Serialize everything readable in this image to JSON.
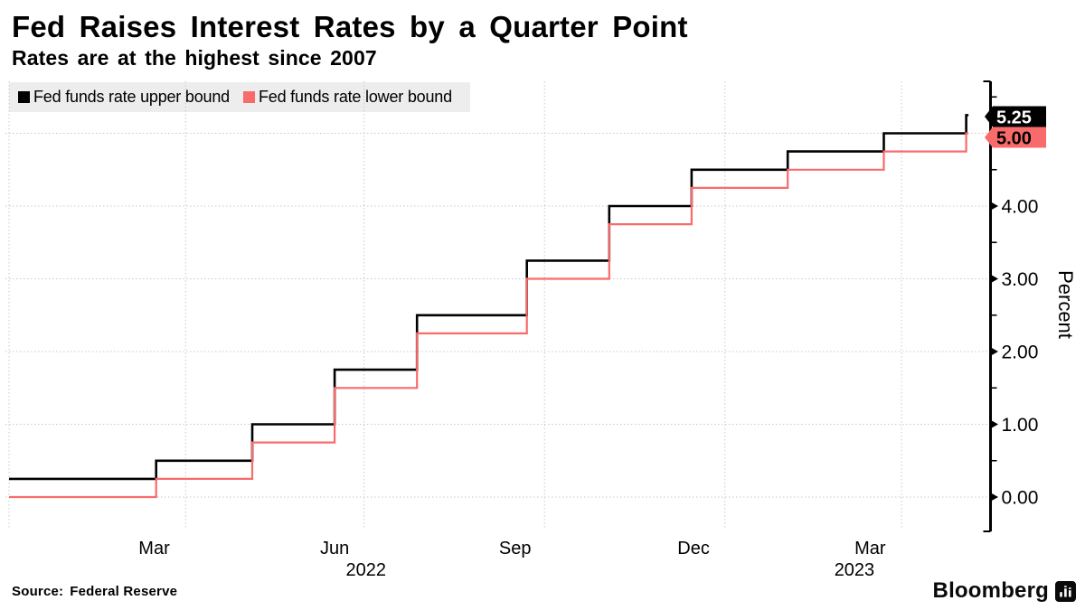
{
  "header": {
    "title": "Fed Raises Interest Rates by a Quarter Point",
    "subtitle": "Rates are at the highest since 2007"
  },
  "legend": {
    "entries": [
      {
        "label": "Fed funds rate upper bound",
        "color": "#000000"
      },
      {
        "label": "Fed funds rate lower bound",
        "color": "#f96b6b"
      }
    ],
    "background": "#ededed"
  },
  "y_axis": {
    "label": "Percent",
    "side": "right",
    "major_ticks": [
      {
        "value": 0,
        "label": "0.00"
      },
      {
        "value": 1,
        "label": "1.00"
      },
      {
        "value": 2,
        "label": "2.00"
      },
      {
        "value": 3,
        "label": "3.00"
      },
      {
        "value": 4,
        "label": "4.00"
      },
      {
        "value": 5,
        "label": "5.00"
      }
    ],
    "minor_tick_values": [
      0.5,
      1.5,
      2.5,
      3.5,
      4.5,
      5.5
    ]
  },
  "x_axis": {
    "month_ticks": [
      {
        "label": "Mar",
        "date": "2022-03-16"
      },
      {
        "label": "Jun",
        "date": "2022-06-16"
      },
      {
        "label": "Sep",
        "date": "2022-09-16"
      },
      {
        "label": "Dec",
        "date": "2022-12-16"
      },
      {
        "label": "Mar",
        "date": "2023-03-16"
      }
    ],
    "year_labels": [
      {
        "label": "2022",
        "date": "2022-07-02"
      },
      {
        "label": "2023",
        "date": "2023-03-08"
      }
    ],
    "gridline_dates": [
      "2022-01-01",
      "2022-04-01",
      "2022-07-01",
      "2022-10-01",
      "2023-01-01",
      "2023-04-01"
    ]
  },
  "value_flags": [
    {
      "text": "5.25",
      "bg": "#000000",
      "fg": "#ffffff"
    },
    {
      "text": "5.00",
      "bg": "#f96b6b",
      "fg": "#000000"
    }
  ],
  "footer": {
    "source_label": "Source:",
    "source_value": "Federal Reserve",
    "brand": "Bloomberg"
  },
  "colors": {
    "upper_line": "#000000",
    "lower_line": "#f96b6b",
    "grid": "#c9c9c9",
    "axis": "#000000",
    "text": "#000000",
    "legend_bg": "#ededed"
  },
  "chart_data": {
    "type": "line",
    "subtype": "step-after",
    "title": "Fed Raises Interest Rates by a Quarter Point",
    "xlabel": "",
    "ylabel": "Percent",
    "x_range": [
      "2022-01-01",
      "2023-05-04"
    ],
    "ylim": [
      -0.45,
      5.7
    ],
    "grid": true,
    "legend_position": "top-left",
    "series": [
      {
        "name": "Fed funds rate upper bound",
        "color": "#000000",
        "points": [
          [
            "2022-01-01",
            0.25
          ],
          [
            "2022-03-17",
            0.5
          ],
          [
            "2022-05-05",
            1.0
          ],
          [
            "2022-06-16",
            1.75
          ],
          [
            "2022-07-28",
            2.5
          ],
          [
            "2022-09-22",
            3.25
          ],
          [
            "2022-11-03",
            4.0
          ],
          [
            "2022-12-15",
            4.5
          ],
          [
            "2023-02-02",
            4.75
          ],
          [
            "2023-03-23",
            5.0
          ],
          [
            "2023-05-04",
            5.25
          ]
        ]
      },
      {
        "name": "Fed funds rate lower bound",
        "color": "#f96b6b",
        "points": [
          [
            "2022-01-01",
            0.0
          ],
          [
            "2022-03-17",
            0.25
          ],
          [
            "2022-05-05",
            0.75
          ],
          [
            "2022-06-16",
            1.5
          ],
          [
            "2022-07-28",
            2.25
          ],
          [
            "2022-09-22",
            3.0
          ],
          [
            "2022-11-03",
            3.75
          ],
          [
            "2022-12-15",
            4.25
          ],
          [
            "2023-02-02",
            4.5
          ],
          [
            "2023-03-23",
            4.75
          ],
          [
            "2023-05-04",
            5.0
          ]
        ]
      }
    ]
  }
}
